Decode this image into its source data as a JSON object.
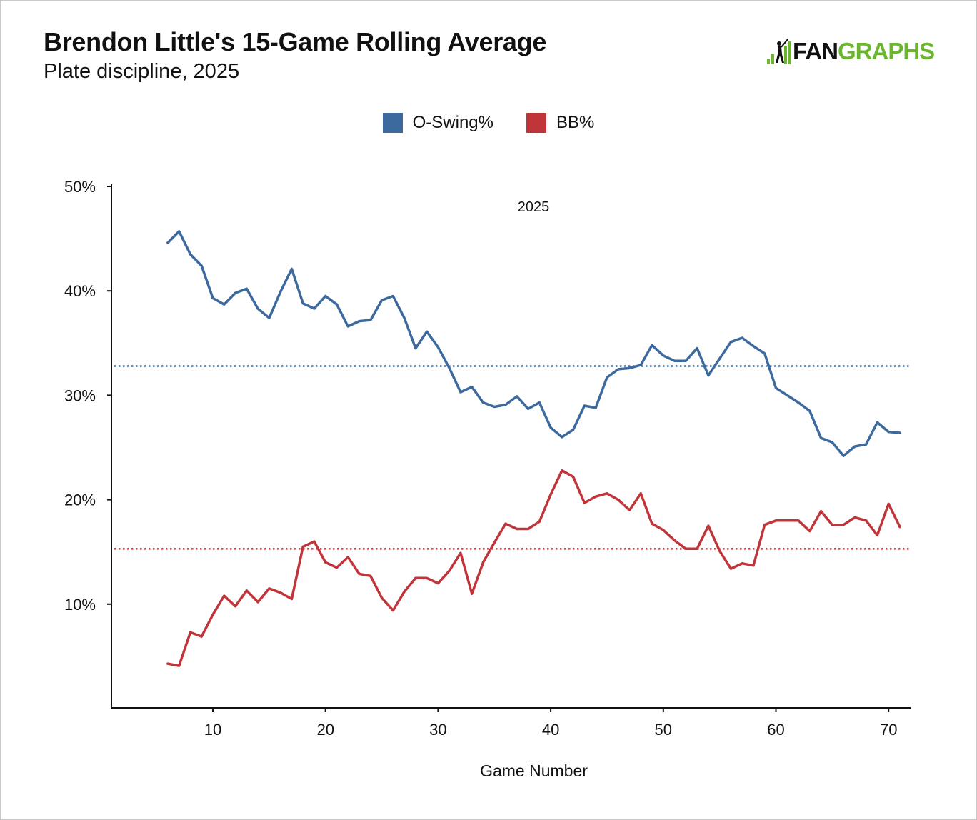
{
  "title": "Brendon Little's 15-Game Rolling Average",
  "subtitle": "Plate discipline, 2025",
  "logo": {
    "fan": "FAN",
    "graphs": "GRAPHS",
    "icon": "fangraphs-batter-icon"
  },
  "colors": {
    "oswing": "#3d6a9e",
    "bb": "#c0353a",
    "logo_green": "#6bb52f"
  },
  "chart_data": {
    "type": "line",
    "title": "Brendon Little's 15-Game Rolling Average",
    "subtitle": "Plate discipline, 2025",
    "annotation": "2025",
    "xlabel": "Game Number",
    "ylabel": "",
    "xlim": [
      1,
      72
    ],
    "ylim": [
      0,
      50
    ],
    "xticks": [
      10,
      20,
      30,
      40,
      50,
      60,
      70
    ],
    "yticks": [
      10,
      20,
      30,
      40,
      50
    ],
    "ytick_labels": [
      "10%",
      "20%",
      "30%",
      "40%",
      "50%"
    ],
    "legend_position": "top-center",
    "grid": false,
    "x": [
      6,
      7,
      8,
      9,
      10,
      11,
      12,
      13,
      14,
      15,
      16,
      17,
      18,
      19,
      20,
      21,
      22,
      23,
      24,
      25,
      26,
      27,
      28,
      29,
      30,
      31,
      32,
      33,
      34,
      35,
      36,
      37,
      38,
      39,
      40,
      41,
      42,
      43,
      44,
      45,
      46,
      47,
      48,
      49,
      50,
      51,
      52,
      53,
      54,
      55,
      56,
      57,
      58,
      59,
      60,
      61,
      62,
      63,
      64,
      65,
      66,
      67,
      68,
      69,
      70,
      71
    ],
    "series": [
      {
        "name": "O-Swing%",
        "color": "#3d6a9e",
        "values": [
          44.6,
          45.7,
          43.5,
          42.4,
          39.3,
          38.7,
          39.8,
          40.2,
          38.3,
          37.4,
          39.9,
          42.1,
          38.8,
          38.3,
          39.5,
          38.7,
          36.6,
          37.1,
          37.2,
          39.1,
          39.5,
          37.4,
          34.5,
          36.1,
          34.6,
          32.6,
          30.3,
          30.8,
          29.3,
          28.9,
          29.1,
          29.9,
          28.7,
          29.3,
          26.9,
          26.0,
          26.7,
          29.0,
          28.8,
          31.7,
          32.5,
          32.6,
          32.9,
          34.8,
          33.8,
          33.3,
          33.3,
          34.5,
          31.9,
          33.5,
          35.1,
          35.5,
          34.7,
          34.0,
          30.7,
          30.0,
          29.3,
          28.5,
          25.9,
          25.5,
          24.2,
          25.1,
          25.3,
          27.4,
          26.5,
          26.4
        ]
      },
      {
        "name": "BB%",
        "color": "#c0353a",
        "values": [
          4.3,
          4.1,
          7.3,
          6.9,
          9.0,
          10.8,
          9.8,
          11.3,
          10.2,
          11.5,
          11.1,
          10.5,
          15.5,
          16.0,
          14.0,
          13.5,
          14.5,
          12.9,
          12.7,
          10.6,
          9.4,
          11.2,
          12.5,
          12.5,
          12.0,
          13.2,
          14.9,
          11.0,
          14.0,
          15.9,
          17.7,
          17.2,
          17.2,
          17.9,
          20.5,
          22.8,
          22.2,
          19.7,
          20.3,
          20.6,
          20.0,
          19.0,
          20.6,
          17.7,
          17.1,
          16.1,
          15.3,
          15.3,
          17.5,
          15.1,
          13.4,
          13.9,
          13.7,
          17.6,
          18.0,
          18.0,
          18.0,
          17.0,
          18.9,
          17.6,
          17.6,
          18.3,
          18.0,
          16.6,
          19.6,
          17.4
        ]
      }
    ],
    "reference_lines": [
      {
        "series": "O-Swing%",
        "value": 32.8,
        "style": "dotted"
      },
      {
        "series": "BB%",
        "value": 15.3,
        "style": "dotted"
      }
    ]
  }
}
